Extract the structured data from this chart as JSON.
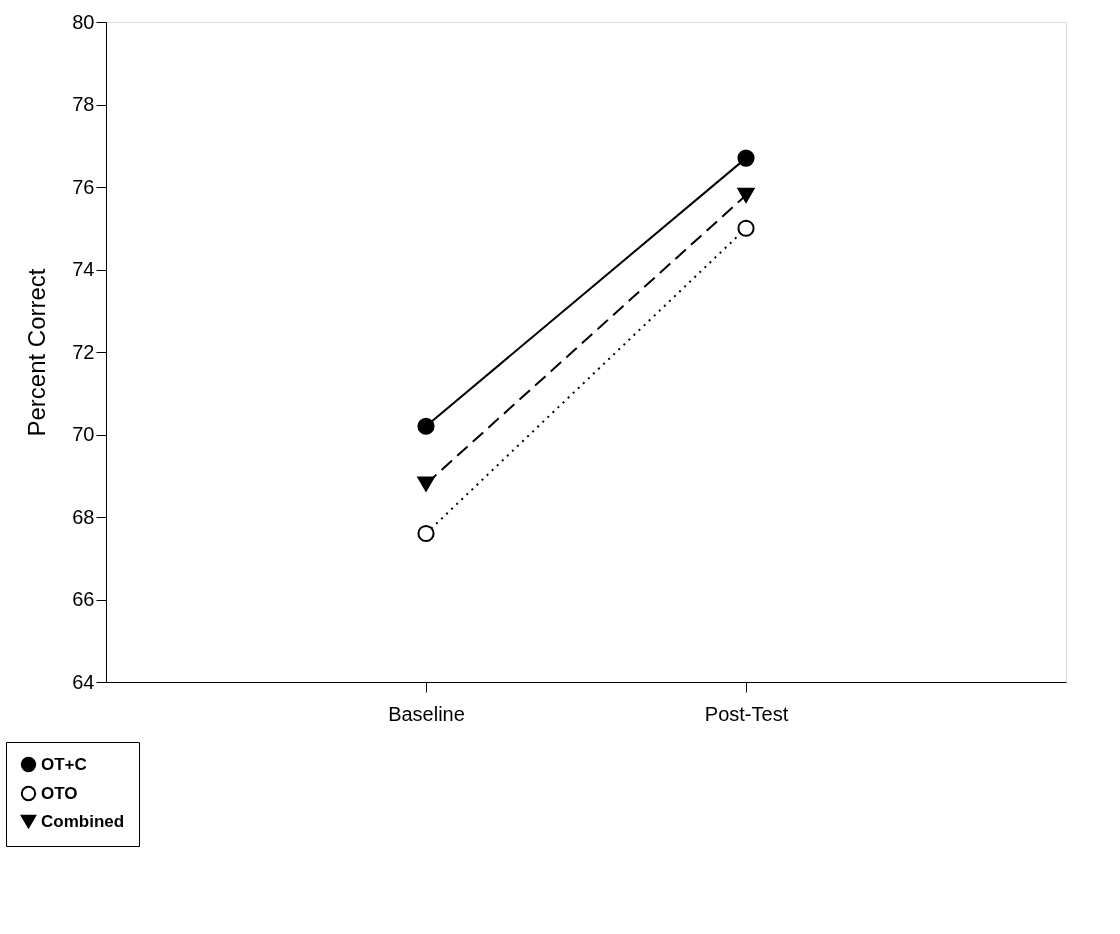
{
  "chart_data": {
    "type": "line",
    "ylabel": "Percent Correct",
    "categories": [
      "Baseline",
      "Post-Test"
    ],
    "series": [
      {
        "name": "OT+C",
        "color": "#000000",
        "values": [
          70.2,
          76.7
        ],
        "marker": "circle",
        "line_style": "solid"
      },
      {
        "name": "OTO",
        "color": "#000000",
        "colors": [
          "#ffffff",
          "#ffffff"
        ],
        "values": [
          67.6,
          75.0
        ],
        "marker": "circle",
        "line_style": "dotted"
      },
      {
        "name": "Combined",
        "color": "#000000",
        "values": [
          68.8,
          75.8
        ],
        "marker": "triangle",
        "line_style": "dashed"
      }
    ],
    "ylim": [
      64,
      80
    ],
    "yticks": [
      64,
      66,
      68,
      70,
      72,
      74,
      76,
      78,
      80
    ],
    "grid": false,
    "legend": "bottom left"
  }
}
